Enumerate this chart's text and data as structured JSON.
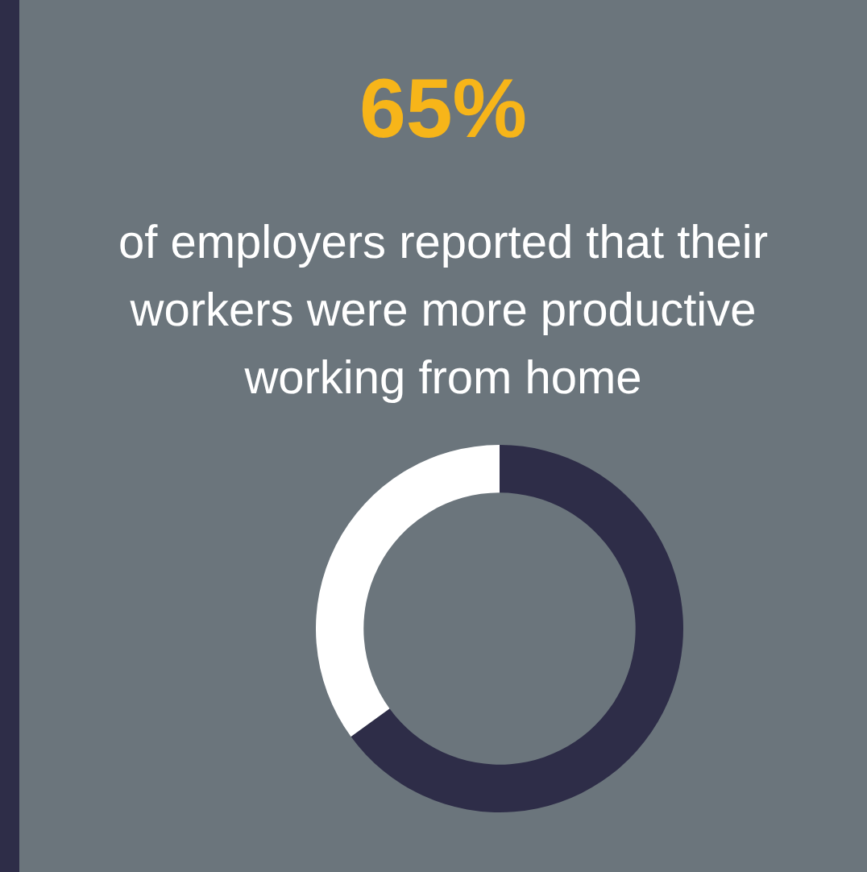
{
  "chart_data": {
    "type": "donut",
    "title": "65%",
    "subtitle": "of employers reported that their workers were more productive working from home",
    "categories": [
      null,
      null
    ],
    "values": [
      65,
      35
    ],
    "colors": [
      "#2e2d48",
      "#ffffff"
    ],
    "legend": false
  }
}
